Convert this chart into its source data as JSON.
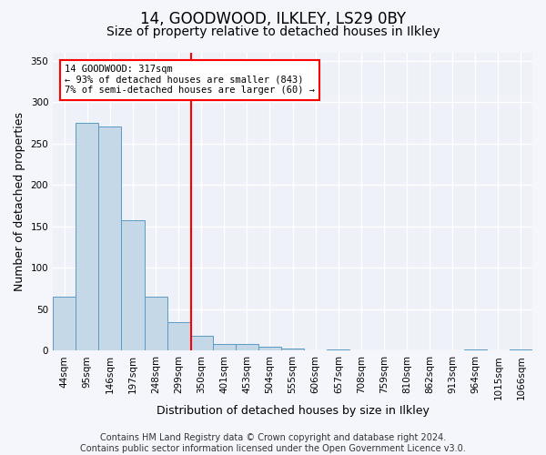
{
  "title1": "14, GOODWOOD, ILKLEY, LS29 0BY",
  "title2": "Size of property relative to detached houses in Ilkley",
  "xlabel": "Distribution of detached houses by size in Ilkley",
  "ylabel": "Number of detached properties",
  "bar_values": [
    65,
    275,
    270,
    158,
    65,
    35,
    18,
    8,
    8,
    5,
    3,
    0,
    2,
    0,
    1,
    0,
    1,
    0,
    2,
    1,
    2
  ],
  "bar_labels": [
    "44sqm",
    "95sqm",
    "146sqm",
    "197sqm",
    "248sqm",
    "299sqm",
    "350sqm",
    "401sqm",
    "453sqm",
    "504sqm",
    "555sqm",
    "606sqm",
    "657sqm",
    "708sqm",
    "759sqm",
    "810sqm",
    "862sqm",
    "913sqm",
    "964sqm",
    "1015sqm",
    "1066sqm"
  ],
  "bar_color": "#c5d8e8",
  "bar_edge_color": "#5b9ac5",
  "annotation_line1": "14 GOODWOOD: 317sqm",
  "annotation_line2": "← 93% of detached houses are smaller (843)",
  "annotation_line3": "7% of semi-detached houses are larger (60) →",
  "annotation_box_color": "white",
  "annotation_box_edge_color": "red",
  "vline_x_index": 5.55,
  "vline_color": "red",
  "ylim": [
    0,
    360
  ],
  "yticks": [
    0,
    50,
    100,
    150,
    200,
    250,
    300,
    350
  ],
  "footer": "Contains HM Land Registry data © Crown copyright and database right 2024.\nContains public sector information licensed under the Open Government Licence v3.0.",
  "bg_color": "#f4f6fb",
  "plot_bg_color": "#eef1f8",
  "grid_color": "#ffffff",
  "title1_fontsize": 12,
  "title2_fontsize": 10,
  "xlabel_fontsize": 9,
  "ylabel_fontsize": 9,
  "tick_fontsize": 7.5,
  "footer_fontsize": 7
}
